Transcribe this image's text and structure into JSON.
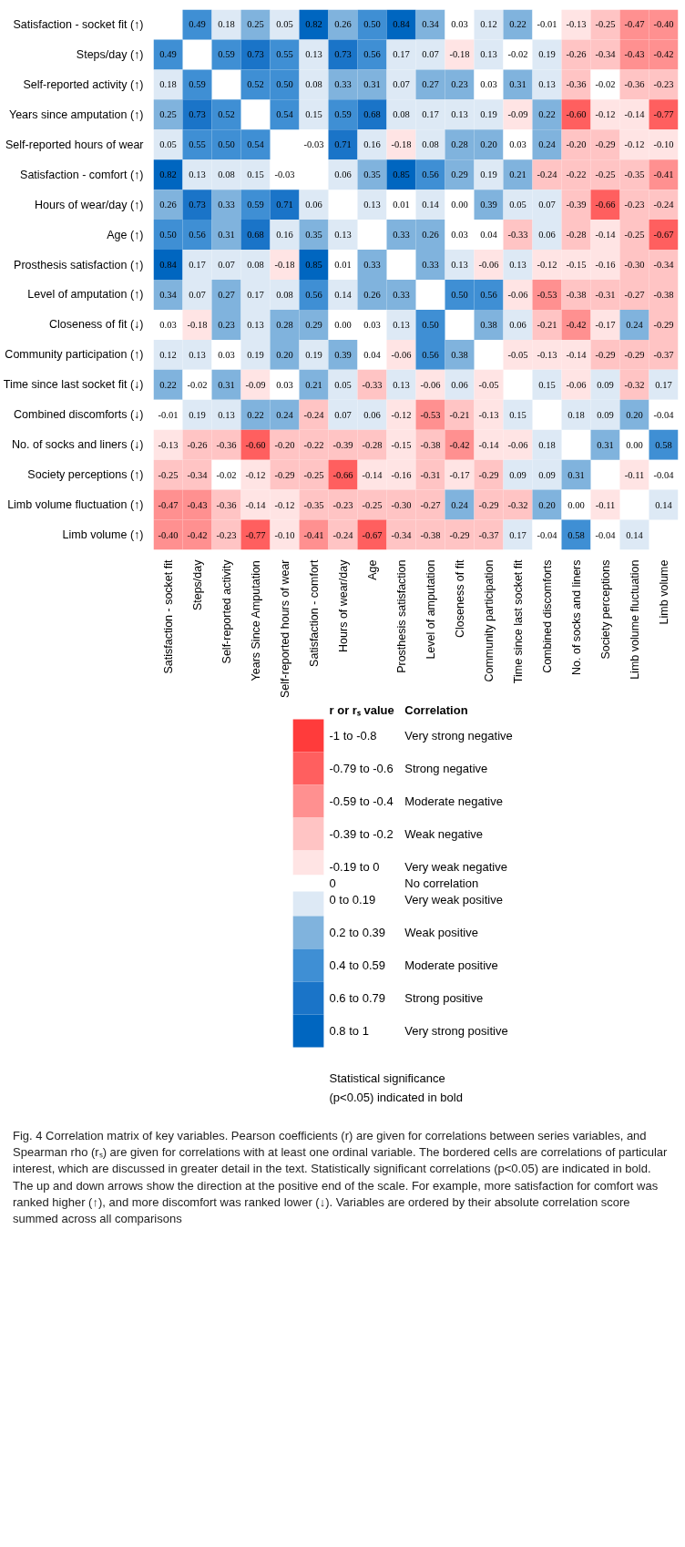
{
  "chart_data": {
    "type": "heatmap",
    "categories": [
      "Satisfaction - socket fit",
      "Steps/day",
      "Self-reported activity",
      "Years Since Amputation",
      "Self-reported hours of wear",
      "Satisfaction - comfort",
      "Hours of wear/day",
      "Age",
      "Prosthesis satisfaction",
      "Level of amputation",
      "Closeness of fit",
      "Community participation",
      "Time since last socket fit",
      "Combined discomforts",
      "No. of socks and liners",
      "Society perceptions",
      "Limb volume fluctuation",
      "Limb volume"
    ],
    "y_categories": [
      "Satisfaction - socket fit (↑)",
      "Steps/day (↑)",
      "Self-reported activity (↑)",
      "Years since amputation (↑)",
      "Self-reported hours of wear",
      "Satisfaction - comfort (↑)",
      "Hours of wear/day (↑)",
      "Age (↑)",
      "Prosthesis satisfaction (↑)",
      "Level of amputation (↑)",
      "Closeness of fit (↓)",
      "Community participation (↑)",
      "Time since last socket fit (↓)",
      "Combined discomforts (↓)",
      "No. of socks and liners (↓)",
      "Society perceptions (↑)",
      "Limb volume fluctuation (↑)",
      "Limb volume (↑)"
    ],
    "cells": [
      [
        null,
        0.49,
        0.18,
        0.25,
        0.05,
        0.82,
        0.26,
        0.5,
        0.84,
        0.34,
        0.03,
        0.12,
        0.22,
        -0.01,
        -0.13,
        -0.25,
        -0.47,
        -0.4
      ],
      [
        0.49,
        null,
        0.59,
        0.73,
        0.55,
        0.13,
        0.73,
        0.56,
        0.17,
        0.07,
        -0.18,
        0.13,
        -0.02,
        0.19,
        -0.26,
        -0.34,
        -0.43,
        -0.42
      ],
      [
        0.18,
        0.59,
        null,
        0.52,
        0.5,
        0.08,
        0.33,
        0.31,
        0.07,
        0.27,
        0.23,
        0.03,
        0.31,
        0.13,
        -0.36,
        -0.02,
        -0.36,
        -0.23
      ],
      [
        0.25,
        0.73,
        0.52,
        null,
        0.54,
        0.15,
        0.59,
        0.68,
        0.08,
        0.17,
        0.13,
        0.19,
        -0.09,
        0.22,
        -0.6,
        -0.12,
        -0.14,
        -0.77
      ],
      [
        0.05,
        0.55,
        0.5,
        0.54,
        null,
        -0.03,
        0.71,
        0.16,
        -0.18,
        0.08,
        0.28,
        0.2,
        0.03,
        0.24,
        -0.2,
        -0.29,
        -0.12,
        -0.1
      ],
      [
        0.82,
        0.13,
        0.08,
        0.15,
        -0.03,
        null,
        0.06,
        0.35,
        0.85,
        0.56,
        0.29,
        0.19,
        0.21,
        -0.24,
        -0.22,
        -0.25,
        -0.35,
        -0.41
      ],
      [
        0.26,
        0.73,
        0.33,
        0.59,
        0.71,
        0.06,
        null,
        0.13,
        0.01,
        0.14,
        0.0,
        0.39,
        0.05,
        0.07,
        -0.39,
        -0.66,
        -0.23,
        -0.24
      ],
      [
        0.5,
        0.56,
        0.31,
        0.68,
        0.16,
        0.35,
        0.13,
        null,
        0.33,
        0.26,
        0.03,
        0.04,
        -0.33,
        0.06,
        -0.28,
        -0.14,
        -0.25,
        -0.67
      ],
      [
        0.84,
        0.17,
        0.07,
        0.08,
        -0.18,
        0.85,
        0.01,
        0.33,
        null,
        0.33,
        0.13,
        -0.06,
        0.13,
        -0.12,
        -0.15,
        -0.16,
        -0.3,
        -0.34
      ],
      [
        0.34,
        0.07,
        0.27,
        0.17,
        0.08,
        0.56,
        0.14,
        0.26,
        0.33,
        null,
        0.5,
        0.56,
        -0.06,
        -0.53,
        -0.38,
        -0.31,
        -0.27,
        -0.38
      ],
      [
        0.03,
        -0.18,
        0.23,
        0.13,
        0.28,
        0.29,
        0.0,
        0.03,
        0.13,
        0.5,
        null,
        0.38,
        0.06,
        -0.21,
        -0.42,
        -0.17,
        0.24,
        -0.29
      ],
      [
        0.12,
        0.13,
        0.03,
        0.19,
        0.2,
        0.19,
        0.39,
        0.04,
        -0.06,
        0.56,
        0.38,
        null,
        -0.05,
        -0.13,
        -0.14,
        -0.29,
        -0.29,
        -0.37
      ],
      [
        0.22,
        -0.02,
        0.31,
        -0.09,
        0.03,
        0.21,
        0.05,
        -0.33,
        0.13,
        -0.06,
        0.06,
        -0.05,
        null,
        0.15,
        -0.06,
        0.09,
        -0.32,
        0.17
      ],
      [
        -0.01,
        0.19,
        0.13,
        0.22,
        0.24,
        -0.24,
        0.07,
        0.06,
        -0.12,
        -0.53,
        -0.21,
        -0.13,
        0.15,
        null,
        0.18,
        0.09,
        0.2,
        -0.04
      ],
      [
        -0.13,
        -0.26,
        -0.36,
        -0.6,
        -0.2,
        -0.22,
        -0.39,
        -0.28,
        -0.15,
        -0.38,
        -0.42,
        -0.14,
        -0.06,
        0.18,
        null,
        0.31,
        0.0,
        0.58
      ],
      [
        -0.25,
        -0.34,
        -0.02,
        -0.12,
        -0.29,
        -0.25,
        -0.66,
        -0.14,
        -0.16,
        -0.31,
        -0.17,
        -0.29,
        0.09,
        0.09,
        0.31,
        null,
        -0.11,
        -0.04
      ],
      [
        -0.47,
        -0.43,
        -0.36,
        -0.14,
        -0.12,
        -0.35,
        -0.23,
        -0.25,
        -0.3,
        -0.27,
        0.24,
        -0.29,
        -0.32,
        0.2,
        0.0,
        -0.11,
        null,
        0.14
      ],
      [
        -0.4,
        -0.42,
        -0.23,
        -0.77,
        -0.1,
        -0.41,
        -0.24,
        -0.67,
        -0.34,
        -0.38,
        -0.29,
        -0.37,
        0.17,
        -0.04,
        0.58,
        -0.04,
        0.14,
        null
      ]
    ],
    "cell_labels": [
      [
        null,
        "0.49",
        "0.18",
        "0.25",
        "0.05",
        "0.82",
        "0.26",
        "0.50",
        "0.84",
        "0.34",
        "0.03",
        "0.12",
        "0.22",
        "-0.01",
        "-0.13",
        "-0.25",
        "-0.47",
        "-0.40"
      ],
      [
        "0.49",
        null,
        "0.59",
        "0.73",
        "0.55",
        "0.13",
        "0.73",
        "0.56",
        "0.17",
        "0.07",
        "-0.18",
        "0.13",
        "-0.02",
        "0.19",
        "-0.26",
        "-0.34",
        "-0.43",
        "-0.42"
      ],
      [
        "0.18",
        "0.59",
        null,
        "0.52",
        "0.50",
        "0.08",
        "0.33",
        "0.31",
        "0.07",
        "0.27",
        "0.23",
        "0.03",
        "0.31",
        "0.13",
        "-0.36",
        "-0.02",
        "-0.36",
        "-0.23"
      ],
      [
        "0.25",
        "0.73",
        "0.52",
        null,
        "0.54",
        "0.15",
        "0.59",
        "0.68",
        "0.08",
        "0.17",
        "0.13",
        "0.19",
        "-0.09",
        "0.22",
        "-0.60",
        "-0.12",
        "-0.14",
        "-0.77"
      ],
      [
        "0.05",
        "0.55",
        "0.50",
        "0.54",
        null,
        "-0.03",
        "0.71",
        "0.16",
        "-0.18",
        "0.08",
        "0.28",
        "0.20",
        "0.03",
        "0.24",
        "-0.20",
        "-0.29",
        "-0.12",
        "-0.10"
      ],
      [
        "0.82",
        "0.13",
        "0.08",
        "0.15",
        "-0.03",
        null,
        "0.06",
        "0.35",
        "0.85",
        "0.56",
        "0.29",
        "0.19",
        "0.21",
        "-0.24",
        "-0.22",
        "-0.25",
        "-0.35",
        "-0.41"
      ],
      [
        "0.26",
        "0.73",
        "0.33",
        "0.59",
        "0.71",
        "0.06",
        null,
        "0.13",
        "0.01",
        "0.14",
        "0.00",
        "0.39",
        "0.05",
        "0.07",
        "-0.39",
        "-0.66",
        "-0.23",
        "-0.24"
      ],
      [
        "0.50",
        "0.56",
        "0.31",
        "0.68",
        "0.16",
        "0.35",
        "0.13",
        null,
        "0.33",
        "0.26",
        "0.03",
        "0.04",
        "-0.33",
        "0.06",
        "-0.28",
        "-0.14",
        "-0.25",
        "-0.67"
      ],
      [
        "0.84",
        "0.17",
        "0.07",
        "0.08",
        "-0.18",
        "0.85",
        "0.01",
        "0.33",
        null,
        "0.33",
        "0.13",
        "-0.06",
        "0.13",
        "-0.12",
        "-0.15",
        "-0.16",
        "-0.30",
        "-0.34"
      ],
      [
        "0.34",
        "0.07",
        "0.27",
        "0.17",
        "0.08",
        "0.56",
        "0.14",
        "0.26",
        "0.33",
        null,
        "0.50",
        "0.56",
        "-0.06",
        "-0.53",
        "-0.38",
        "-0.31",
        "-0.27",
        "-0.38"
      ],
      [
        "0.03",
        "-0.18",
        "0.23",
        "0.13",
        "0.28",
        "0.29",
        "0.00",
        "0.03",
        "0.13",
        "0.50",
        null,
        "0.38",
        "0.06",
        "-0.21",
        "-0.42",
        "-0.17",
        "0.24",
        "-0.29"
      ],
      [
        "0.12",
        "0.13",
        "0.03",
        "0.19",
        "0.20",
        "0.19",
        "0.39",
        "0.04",
        "-0.06",
        "0.56",
        "0.38",
        null,
        "-0.05",
        "-0.13",
        "-0.14",
        "-0.29",
        "-0.29",
        "-0.37"
      ],
      [
        "0.22",
        "-0.02",
        "0.31",
        "-0.09",
        "0.03",
        "0.21",
        "0.05",
        "-0.33",
        "0.13",
        "-0.06",
        "0.06",
        "-0.05",
        null,
        "0.15",
        "-0.06",
        "0.09",
        "-0.32",
        "0.17"
      ],
      [
        "-0.01",
        "0.19",
        "0.13",
        "0.22",
        "0.24",
        "-0.24",
        "0.07",
        "0.06",
        "-0.12",
        "-0.53",
        "-0.21",
        "-0.13",
        "0.15",
        null,
        "0.18",
        "0.09",
        "0.20",
        "-0.04"
      ],
      [
        "-0.13",
        "-0.26",
        "-0.36",
        "-0.60",
        "-0.20",
        "-0.22",
        "-0.39",
        "-0.28",
        "-0.15",
        "-0.38",
        "-0.42",
        "-0.14",
        "-0.06",
        "0.18",
        null,
        "0.31",
        "0.00",
        "0.58"
      ],
      [
        "-0.25",
        "-0.34",
        "-0.02",
        "-0.12",
        "-0.29",
        "-0.25",
        "-0.66",
        "-0.14",
        "-0.16",
        "-0.31",
        "-0.17",
        "-0.29",
        "0.09",
        "0.09",
        "0.31",
        null,
        "-0.11",
        "-0.04"
      ],
      [
        "-0.47",
        "-0.43",
        "-0.36",
        "-0.14",
        "-0.12",
        "-0.35",
        "-0.23",
        "-0.25",
        "-0.30",
        "-0.27",
        "0.24",
        "-0.29",
        "-0.32",
        "0.20",
        "0.00",
        "-0.11",
        null,
        "0.14"
      ],
      [
        "-0.40",
        "-0.42",
        "-0.23",
        "-0.77",
        "-0.10",
        "-0.41",
        "-0.24",
        "-0.67",
        "-0.34",
        "-0.38",
        "-0.29",
        "-0.37",
        "0.17",
        "-0.04",
        "0.58",
        "-0.04",
        "0.14",
        null
      ]
    ],
    "data_labels": true,
    "clim": [
      -1,
      1
    ],
    "colors": [
      "#ff3b3b",
      "#ff5f5f",
      "#ff9090",
      "#ffc4c4",
      "#ffe4e4",
      "#ffffff",
      "#dde9f5",
      "#80b3dd",
      "#3f8fd4",
      "#1a74c8",
      "#0066c0"
    ],
    "clabel": "r or rₛ value",
    "cticks": [
      {
        "value": -0.9,
        "label": "-1 to -0.8"
      },
      {
        "value": -0.7,
        "label": "-0.79 to -0.6"
      },
      {
        "value": -0.5,
        "label": "-0.59 to -0.4"
      },
      {
        "value": -0.3,
        "label": "-0.39 to -0.2"
      },
      {
        "value": -0.1,
        "label": "-0.19 to 0"
      },
      {
        "value": 0,
        "label": "0"
      },
      {
        "value": 0.1,
        "label": "0 to 0.19"
      },
      {
        "value": 0.3,
        "label": "0.2 to 0.39"
      },
      {
        "value": 0.5,
        "label": "0.4 to 0.59"
      },
      {
        "value": 0.7,
        "label": "0.6 to 0.79"
      },
      {
        "value": 0.9,
        "label": "0.8 to 1"
      }
    ],
    "annotations": [
      "Correlation",
      "Very strong negative",
      "Strong negative",
      "Moderate negative",
      "Weak negative",
      "Very weak negative",
      "No correlation",
      "Very weak positive",
      "Weak positive",
      "Moderate positive",
      "Strong positive",
      "Very strong positive",
      "Statistical significance",
      "(p<0.05) indicated in bold",
      "Fig. 4 Correlation matrix of key variables. Pearson coefficients (r) are given for correlations between series variables, and Spearman rho (rₛ) are given for correlations with at least one ordinal variable. The bordered cells are correlations of particular interest, which are discussed in greater detail in the text. Statistically significant correlations (p<0.05) are indicated in bold. The up and down arrows show the direction at the positive end of the scale. For example, more satisfaction for comfort was ranked higher (↑), and more discomfort was ranked lower (↓). Variables are ordered by their absolute correlation score summed across all comparisons"
    ]
  }
}
